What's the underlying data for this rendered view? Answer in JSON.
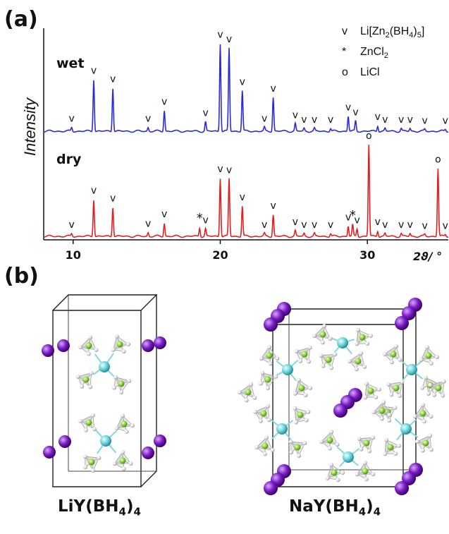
{
  "panel_a": {
    "label": "(a)",
    "y_axis_label": "Intensity",
    "x_axis_label": "2ϑ/ °",
    "x_ticks": [
      "10",
      "20",
      "30"
    ],
    "trace_labels": {
      "wet": "wet",
      "dry": "dry"
    },
    "peak_markers": {
      "main_phase": "v",
      "zncl2": "*",
      "licl": "o"
    }
  },
  "legend": {
    "items": [
      {
        "symbol": "v",
        "prefix": "Li[Zn",
        "sub1": "2",
        "mid": "(BH",
        "sub2": "4",
        "mid2": ")",
        "sub3": "5",
        "suffix": "]"
      },
      {
        "symbol": "*",
        "prefix": "ZnCl",
        "sub1": "2",
        "mid": "",
        "sub2": "",
        "mid2": "",
        "sub3": "",
        "suffix": ""
      },
      {
        "symbol": "o",
        "prefix": "LiCl",
        "sub1": "",
        "mid": "",
        "sub2": "",
        "mid2": "",
        "sub3": "",
        "suffix": ""
      }
    ]
  },
  "panel_b": {
    "label": "(b)",
    "left_compound": {
      "prefix": "LiY(BH",
      "sub": "4",
      "suffix": ")",
      "sub2": "4"
    },
    "right_compound": {
      "prefix": "NaY(BH",
      "sub": "4",
      "suffix": ")",
      "sub2": "4"
    }
  },
  "chart_data": {
    "type": "line",
    "xlim": [
      8,
      35.5
    ],
    "x_ticks": [
      10,
      20,
      30
    ],
    "grid": false,
    "series": [
      {
        "name": "wet",
        "color": "#2a2ad8",
        "peaks": [
          {
            "x": 9.9,
            "h": 0.04,
            "m": "v"
          },
          {
            "x": 11.4,
            "h": 0.55,
            "m": "v"
          },
          {
            "x": 12.7,
            "h": 0.46,
            "m": "v"
          },
          {
            "x": 15.1,
            "h": 0.04,
            "m": "v"
          },
          {
            "x": 16.2,
            "h": 0.22,
            "m": "v"
          },
          {
            "x": 19.0,
            "h": 0.1,
            "m": "v"
          },
          {
            "x": 20.0,
            "h": 0.93,
            "m": "v"
          },
          {
            "x": 20.6,
            "h": 0.88,
            "m": "v"
          },
          {
            "x": 21.5,
            "h": 0.43,
            "m": "v"
          },
          {
            "x": 23.0,
            "h": 0.04,
            "m": "v"
          },
          {
            "x": 23.6,
            "h": 0.36,
            "m": "v"
          },
          {
            "x": 25.1,
            "h": 0.08,
            "m": "v"
          },
          {
            "x": 25.7,
            "h": 0.03,
            "m": "v"
          },
          {
            "x": 26.4,
            "h": 0.03,
            "m": "v"
          },
          {
            "x": 27.5,
            "h": 0.03,
            "m": "v"
          },
          {
            "x": 28.7,
            "h": 0.16,
            "m": "v"
          },
          {
            "x": 29.2,
            "h": 0.11,
            "m": "v"
          },
          {
            "x": 30.7,
            "h": 0.06,
            "m": "v"
          },
          {
            "x": 31.2,
            "h": 0.03,
            "m": "v"
          },
          {
            "x": 32.3,
            "h": 0.03,
            "m": "v"
          },
          {
            "x": 32.9,
            "h": 0.03,
            "m": "v"
          },
          {
            "x": 33.9,
            "h": 0.02,
            "m": "v"
          },
          {
            "x": 35.3,
            "h": 0.02,
            "m": "v"
          }
        ]
      },
      {
        "name": "dry",
        "color": "#e02020",
        "peaks": [
          {
            "x": 9.9,
            "h": 0.03,
            "m": "v"
          },
          {
            "x": 11.4,
            "h": 0.39,
            "m": "v"
          },
          {
            "x": 12.7,
            "h": 0.31,
            "m": "v"
          },
          {
            "x": 15.1,
            "h": 0.04,
            "m": "v"
          },
          {
            "x": 16.2,
            "h": 0.14,
            "m": "v"
          },
          {
            "x": 18.6,
            "h": 0.09,
            "m": "*"
          },
          {
            "x": 19.0,
            "h": 0.08,
            "m": "v"
          },
          {
            "x": 20.0,
            "h": 0.62,
            "m": "v"
          },
          {
            "x": 20.6,
            "h": 0.61,
            "m": "v"
          },
          {
            "x": 21.5,
            "h": 0.32,
            "m": "v"
          },
          {
            "x": 23.0,
            "h": 0.03,
            "m": "v"
          },
          {
            "x": 23.6,
            "h": 0.23,
            "m": "v"
          },
          {
            "x": 25.1,
            "h": 0.06,
            "m": "v"
          },
          {
            "x": 25.7,
            "h": 0.03,
            "m": "v"
          },
          {
            "x": 26.4,
            "h": 0.03,
            "m": "v"
          },
          {
            "x": 27.5,
            "h": 0.03,
            "m": "v"
          },
          {
            "x": 28.7,
            "h": 0.11,
            "m": "v"
          },
          {
            "x": 29.0,
            "h": 0.12,
            "m": "*"
          },
          {
            "x": 29.3,
            "h": 0.08,
            "m": "v"
          },
          {
            "x": 30.1,
            "h": 0.97,
            "m": "o"
          },
          {
            "x": 30.7,
            "h": 0.06,
            "m": "v"
          },
          {
            "x": 31.2,
            "h": 0.03,
            "m": "v"
          },
          {
            "x": 32.3,
            "h": 0.03,
            "m": "v"
          },
          {
            "x": 32.9,
            "h": 0.03,
            "m": "v"
          },
          {
            "x": 33.9,
            "h": 0.02,
            "m": "v"
          },
          {
            "x": 34.8,
            "h": 0.72,
            "m": "o"
          },
          {
            "x": 35.3,
            "h": 0.02,
            "m": "v"
          }
        ]
      }
    ]
  }
}
